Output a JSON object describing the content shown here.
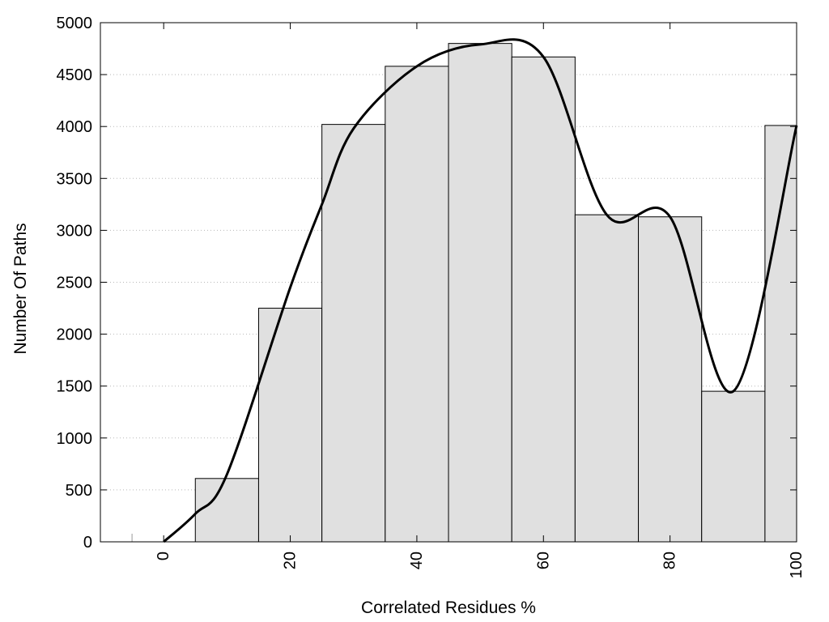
{
  "chart_data": {
    "type": "bar",
    "xlabel": "Correlated Residues %",
    "ylabel": "Number Of Paths",
    "xlim": [
      -10,
      100
    ],
    "ylim": [
      0,
      5000
    ],
    "x_ticks": [
      "0",
      "20",
      "40",
      "60",
      "80",
      "100"
    ],
    "y_ticks": [
      "0",
      "500",
      "1000",
      "1500",
      "2000",
      "2500",
      "3000",
      "3500",
      "4000",
      "4500",
      "5000"
    ],
    "grid": "horizontal dotted",
    "series": [
      {
        "kind": "bars",
        "bin_width": 10,
        "x": [
          0,
          10,
          20,
          30,
          40,
          50,
          60,
          70,
          80,
          90,
          100
        ],
        "values": [
          0,
          610,
          2250,
          4020,
          4580,
          4800,
          4670,
          3150,
          3130,
          1450,
          4010
        ],
        "fill": "#e0e0e0",
        "stroke": "#000000"
      },
      {
        "kind": "line",
        "smooth": true,
        "x": [
          0,
          5,
          10,
          20,
          25,
          30,
          40,
          50,
          60,
          70,
          80,
          90,
          100
        ],
        "values": [
          0,
          270,
          650,
          2450,
          3250,
          3980,
          4580,
          4790,
          4670,
          3150,
          3130,
          1450,
          4010
        ],
        "color": "#000000"
      }
    ]
  }
}
